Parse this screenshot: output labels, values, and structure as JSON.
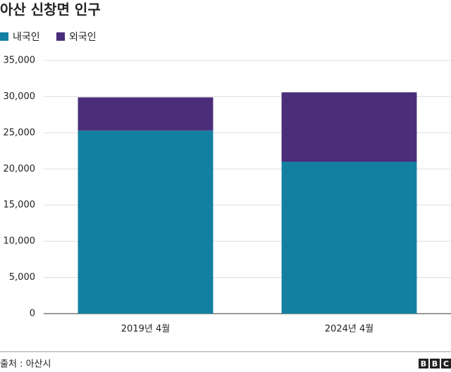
{
  "chart_data": {
    "type": "stacked_bar",
    "title": "아산 신창면 인구",
    "categories": [
      "2019년 4월",
      "2024년 4월"
    ],
    "series": [
      {
        "name": "내국인",
        "color": "#1380a1",
        "values": [
          25300,
          21000
        ]
      },
      {
        "name": "외국인",
        "color": "#4b2e7a",
        "values": [
          4600,
          9600
        ]
      }
    ],
    "ylim": [
      0,
      35000
    ],
    "yticks": [
      0,
      {
        "value": 5000,
        "label": "5,000"
      },
      {
        "value": 10000,
        "label": "10,000"
      },
      {
        "value": 15000,
        "label": "15,000"
      },
      {
        "value": 20000,
        "label": "20,000"
      },
      {
        "value": 25000,
        "label": "25,000"
      },
      {
        "value": 30000,
        "label": "30,000"
      },
      {
        "value": 35000,
        "label": "35,000"
      }
    ],
    "grid": true,
    "source": "출처 : 아산시",
    "logo": [
      "B",
      "B",
      "C"
    ]
  }
}
